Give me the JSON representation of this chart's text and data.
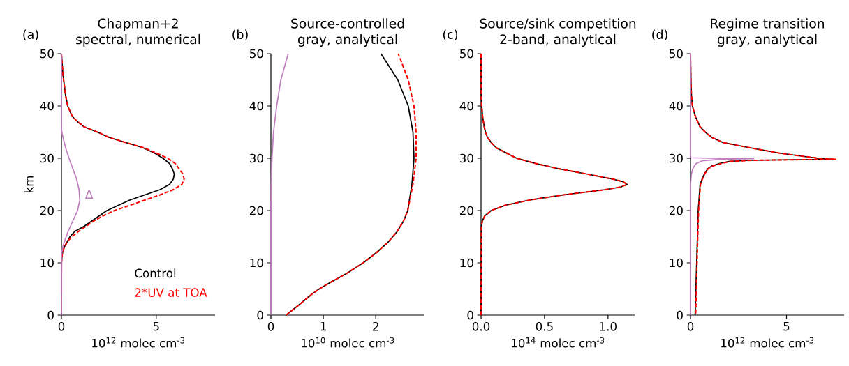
{
  "chart_data": [
    {
      "type": "line",
      "title": "Chapman+2",
      "subtitle": "spectral, numerical",
      "xlabel": "10$^{12}$ molec cm$^{-3}$",
      "ylabel": "km",
      "annotations": [
        "(a)",
        {
          "text": "Δ",
          "x": 0.97,
          "y": 22
        }
      ],
      "xlim": [
        0,
        8.1
      ],
      "ylim": [
        0,
        50
      ],
      "xticks": [
        0,
        5
      ],
      "yticks": [
        0,
        10,
        20,
        30,
        40,
        50
      ],
      "grid": false,
      "legend": "bottom right",
      "series": [
        {
          "name": "Control",
          "color": "#000000",
          "line_style": "solid",
          "x": [
            0,
            0.08,
            0.22,
            0.33,
            0.57,
            0.85,
            1.2,
            1.9,
            2.5,
            3.4,
            4.3,
            4.9,
            5.35,
            5.7,
            5.85,
            5.95,
            5.92,
            5.9,
            5.7,
            5.2,
            4.4,
            3.6,
            3.0,
            2.4,
            2.0,
            1.6,
            1.2,
            0.7,
            0.45,
            0.3,
            0.15,
            0.06,
            0.02,
            0.01,
            0,
            0
          ],
          "values": [
            50,
            46,
            42,
            40,
            38,
            37,
            36,
            35,
            34,
            33,
            32,
            31,
            30,
            29,
            28,
            27,
            26.4,
            26,
            25,
            24,
            23,
            22,
            21,
            20,
            19,
            18,
            17,
            16,
            15,
            14,
            13,
            12,
            11,
            10,
            5,
            0
          ]
        },
        {
          "name": "2*UV at TOA",
          "color": "#ff0000",
          "line_style": "dashed",
          "x": [
            0,
            0.08,
            0.22,
            0.33,
            0.57,
            0.85,
            1.2,
            1.9,
            2.5,
            3.4,
            4.35,
            5.0,
            5.6,
            6.0,
            6.2,
            6.4,
            6.47,
            6.35,
            5.9,
            5.2,
            4.4,
            3.6,
            2.8,
            2.2,
            1.7,
            1.3,
            0.9,
            0.55,
            0.3,
            0.15,
            0.06,
            0.02,
            0,
            0
          ],
          "values": [
            50,
            46,
            42,
            40,
            38,
            37,
            36,
            35,
            34,
            33,
            32,
            31,
            30,
            29,
            28,
            27,
            26,
            25,
            24,
            23,
            22,
            21,
            20,
            19,
            18,
            17,
            16,
            15,
            14,
            13,
            12,
            11,
            10,
            0
          ]
        },
        {
          "color": "#c080c0",
          "line_style": "solid",
          "x": [
            0,
            0,
            0.02,
            0.08,
            0.22,
            0.4,
            0.6,
            0.8,
            0.93,
            0.97,
            0.85,
            0.6,
            0.35,
            0.15,
            0.07,
            0.02,
            0,
            0
          ],
          "values": [
            50,
            36,
            35,
            34,
            32,
            30,
            28,
            26,
            24,
            22,
            20,
            18,
            16,
            14,
            13,
            12,
            11,
            0
          ]
        }
      ]
    },
    {
      "type": "line",
      "title": "Source-controlled",
      "subtitle": "gray, analytical",
      "xlabel": "10$^{10}$ molec cm$^{-3}$",
      "annotations": [
        "(b)"
      ],
      "xlim": [
        0,
        2.93
      ],
      "ylim": [
        0,
        50
      ],
      "xticks": [
        0,
        1,
        2
      ],
      "yticks": [
        0,
        10,
        20,
        30,
        40,
        50
      ],
      "grid": false,
      "series": [
        {
          "color": "#000000",
          "line_style": "solid",
          "x": [
            0.29,
            0.54,
            0.78,
            0.92,
            1.09,
            1.45,
            1.76,
            2.02,
            2.24,
            2.41,
            2.53,
            2.61,
            2.69,
            2.73,
            2.71,
            2.62,
            2.42,
            2.1
          ],
          "values": [
            0,
            2,
            4,
            5,
            6,
            8,
            10,
            12,
            14,
            16,
            18,
            20,
            25,
            30,
            35,
            40,
            45,
            50
          ]
        },
        {
          "color": "#ff0000",
          "line_style": "dashed",
          "x": [
            0.29,
            0.54,
            0.78,
            0.92,
            1.09,
            1.45,
            1.76,
            2.02,
            2.24,
            2.41,
            2.53,
            2.61,
            2.71,
            2.77,
            2.77,
            2.73,
            2.62,
            2.43
          ],
          "values": [
            0,
            2,
            4,
            5,
            6,
            8,
            10,
            12,
            14,
            16,
            18,
            20,
            25,
            30,
            35,
            40,
            45,
            50
          ]
        },
        {
          "color": "#c080c0",
          "line_style": "solid",
          "x": [
            0,
            0,
            0.005,
            0.02,
            0.05,
            0.11,
            0.19,
            0.33
          ],
          "values": [
            0,
            20,
            25,
            30,
            35,
            40,
            45,
            50
          ]
        }
      ]
    },
    {
      "type": "line",
      "title": "Source/sink competition",
      "subtitle": "2-band, analytical",
      "xlabel": "10$^{14}$ molec cm$^{-3}$",
      "annotations": [
        "(c)"
      ],
      "xlim": [
        0,
        1.21
      ],
      "ylim": [
        0,
        50
      ],
      "xticks": [
        {
          "value": 0,
          "label": "0.0"
        },
        {
          "value": 0.5,
          "label": "0.5"
        },
        {
          "value": 1,
          "label": "1.0"
        }
      ],
      "yticks": [
        0,
        10,
        20,
        30,
        40,
        50
      ],
      "grid": false,
      "series": [
        {
          "color": "#000000",
          "line_style": "solid",
          "x": [
            0,
            0.002,
            0.005,
            0.012,
            0.025,
            0.035,
            0.05,
            0.08,
            0.12,
            0.2,
            0.28,
            0.43,
            0.61,
            0.83,
            1.04,
            1.12,
            1.15,
            1.1,
            0.98,
            0.65,
            0.38,
            0.19,
            0.08,
            0.03,
            0.01,
            0.003,
            0
          ],
          "values": [
            50,
            42,
            40,
            38,
            36,
            35,
            34,
            33,
            32,
            31,
            30,
            29,
            28,
            27,
            26,
            25.5,
            25,
            24.5,
            24,
            23,
            22,
            21,
            20,
            19,
            18,
            17,
            0
          ]
        },
        {
          "color": "#ff0000",
          "line_style": "dashed",
          "x": [
            0,
            0.002,
            0.005,
            0.012,
            0.025,
            0.035,
            0.05,
            0.08,
            0.12,
            0.2,
            0.28,
            0.43,
            0.61,
            0.83,
            1.04,
            1.12,
            1.15,
            1.1,
            0.98,
            0.65,
            0.38,
            0.19,
            0.08,
            0.03,
            0.01,
            0.003,
            0
          ],
          "values": [
            50,
            42,
            40,
            38,
            36,
            35,
            34,
            33,
            32,
            31,
            30,
            29,
            28,
            27,
            26,
            25.5,
            25,
            24.5,
            24,
            23,
            22,
            21,
            20,
            19,
            18,
            17,
            0
          ]
        }
      ]
    },
    {
      "type": "line",
      "title": "Regime transition",
      "subtitle": "gray, analytical",
      "xlabel": "10$^{12}$ molec cm$^{-3}$",
      "annotations": [
        "(d)"
      ],
      "xlim": [
        0,
        8.0
      ],
      "ylim": [
        0,
        50
      ],
      "xticks": [
        0,
        5
      ],
      "yticks": [
        0,
        10,
        20,
        30,
        40,
        50
      ],
      "grid": false,
      "series": [
        {
          "color": "#000000",
          "line_style": "solid",
          "x": [
            0,
            0.02,
            0.05,
            0.1,
            0.25,
            0.5,
            0.77,
            1.1,
            1.7,
            3.1,
            4.6,
            5.6,
            6.6,
            7.4,
            5.0,
            3.0,
            2.0,
            1.5,
            1.1,
            0.9,
            0.72,
            0.6,
            0.5,
            0.4,
            0.32,
            0.24
          ],
          "values": [
            50,
            45,
            42,
            40,
            38,
            36,
            35,
            34,
            33,
            32,
            31,
            30.5,
            30,
            29.8,
            29.7,
            29.6,
            29.4,
            29,
            28.5,
            28,
            27,
            26,
            25,
            20,
            10,
            0
          ]
        },
        {
          "color": "#ff0000",
          "line_style": "dashed",
          "x": [
            0,
            0.02,
            0.05,
            0.1,
            0.25,
            0.5,
            0.77,
            1.1,
            1.7,
            3.1,
            4.6,
            5.6,
            6.7,
            7.6,
            5.2,
            3.2,
            2.1,
            1.6,
            1.15,
            0.92,
            0.74,
            0.62,
            0.52,
            0.42,
            0.34,
            0.27
          ],
          "values": [
            50,
            45,
            42,
            40,
            38,
            36,
            35,
            34,
            33,
            32,
            31,
            30.5,
            30,
            29.8,
            29.7,
            29.6,
            29.4,
            29,
            28.5,
            28,
            27,
            26,
            25,
            20,
            10,
            0
          ]
        },
        {
          "color": "#c080c0",
          "line_style": "solid",
          "x": [
            0,
            0,
            1.0,
            3.3,
            1.5,
            0.6,
            0.3,
            0.2,
            0.12,
            0.05,
            0.02,
            0,
            0
          ],
          "values": [
            50,
            30.1,
            30.0,
            29.9,
            29.8,
            29.5,
            29,
            28.5,
            28,
            27,
            26,
            25,
            0
          ]
        }
      ]
    }
  ]
}
